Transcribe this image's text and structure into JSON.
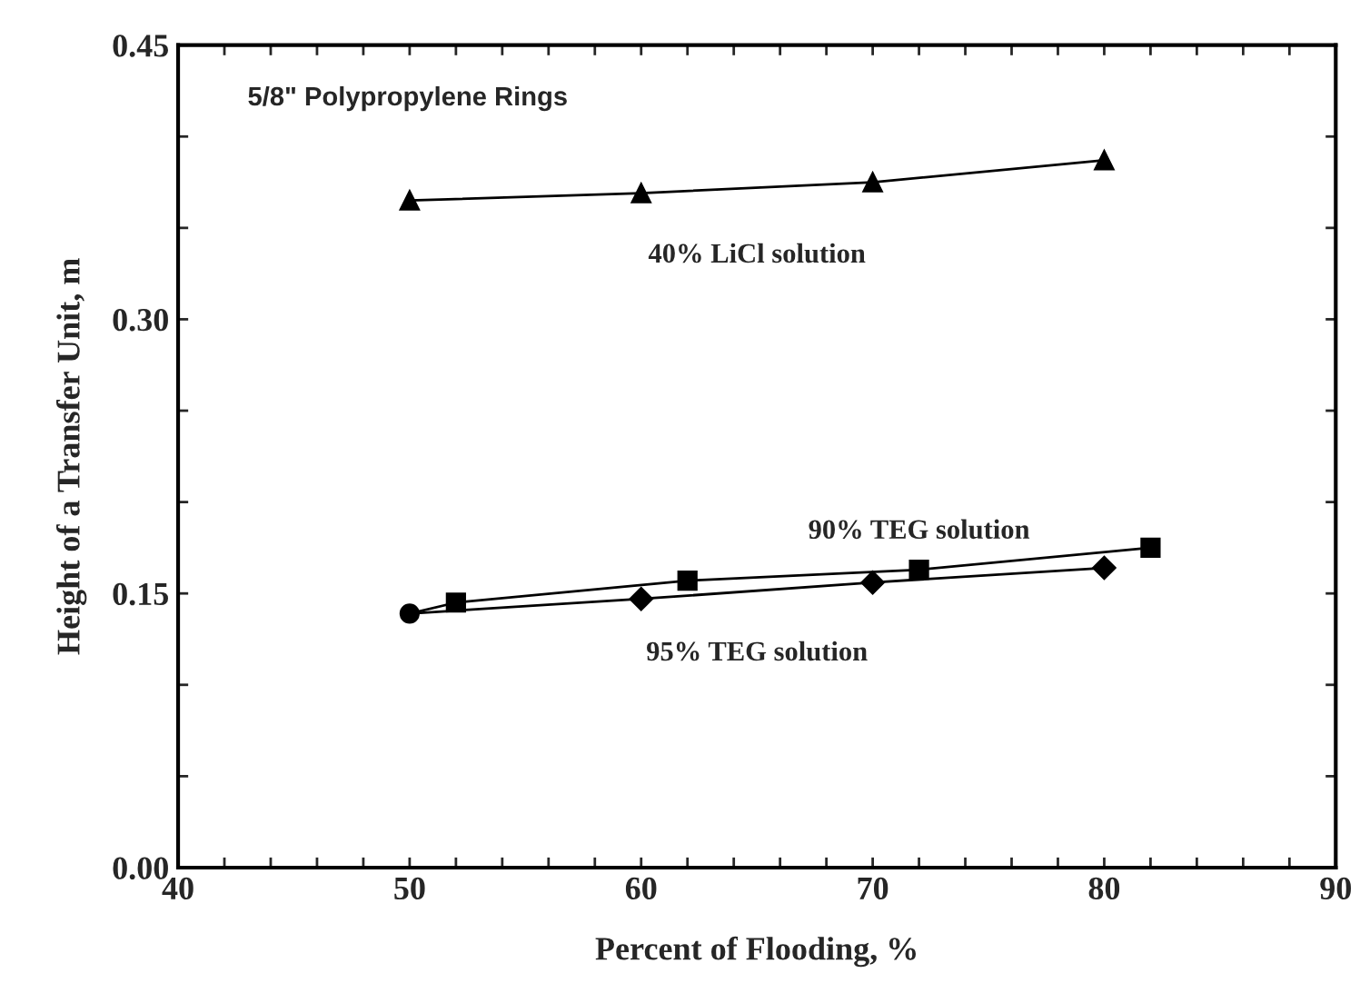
{
  "chart_data": {
    "type": "line",
    "xlabel": "Percent of Flooding, %",
    "ylabel": "Height of a Transfer Unit, m",
    "annotations": [
      "5/8\" Polypropylene Rings"
    ],
    "xlim": [
      40,
      90
    ],
    "ylim": [
      0,
      0.45
    ],
    "xticks": [
      40,
      {
        "value": 42,
        "label": null
      },
      {
        "value": 44,
        "label": null
      },
      {
        "value": 46,
        "label": null
      },
      {
        "value": 48,
        "label": null
      },
      50,
      {
        "value": 52,
        "label": null
      },
      {
        "value": 54,
        "label": null
      },
      {
        "value": 56,
        "label": null
      },
      {
        "value": 58,
        "label": null
      },
      60,
      {
        "value": 62,
        "label": null
      },
      {
        "value": 64,
        "label": null
      },
      {
        "value": 66,
        "label": null
      },
      {
        "value": 68,
        "label": null
      },
      70,
      {
        "value": 72,
        "label": null
      },
      {
        "value": 74,
        "label": null
      },
      {
        "value": 76,
        "label": null
      },
      {
        "value": 78,
        "label": null
      },
      80,
      {
        "value": 82,
        "label": null
      },
      {
        "value": 84,
        "label": null
      },
      {
        "value": 86,
        "label": null
      },
      {
        "value": 88,
        "label": null
      },
      90
    ],
    "yticks": [
      {
        "value": 0,
        "label": "0.00"
      },
      {
        "value": 0.05,
        "label": null
      },
      {
        "value": 0.1,
        "label": null
      },
      {
        "value": 0.15,
        "label": "0.15"
      },
      {
        "value": 0.2,
        "label": null
      },
      {
        "value": 0.25,
        "label": null
      },
      {
        "value": 0.3,
        "label": "0.30"
      },
      {
        "value": 0.35,
        "label": null
      },
      {
        "value": 0.4,
        "label": null
      },
      {
        "value": 0.45,
        "label": "0.45"
      }
    ],
    "grid": false,
    "legend": false,
    "line_style": "solid",
    "series": [
      {
        "name": "40% LiCl solution",
        "color": "#000000",
        "marker": "triangle",
        "x": [
          50,
          60,
          70,
          80
        ],
        "values": [
          0.365,
          0.369,
          0.375,
          0.387
        ]
      },
      {
        "name": "90% TEG solution",
        "color": "#000000",
        "marker": "square",
        "x": [
          50,
          52,
          62,
          72,
          82
        ],
        "values": [
          0.139,
          0.145,
          0.157,
          0.163,
          0.175
        ]
      },
      {
        "name": "95% TEG solution",
        "color": "#000000",
        "marker": "diamond",
        "x": [
          50,
          60,
          70,
          80
        ],
        "values": [
          0.139,
          0.147,
          0.156,
          0.164
        ]
      },
      {
        "type": "scatter",
        "color": "#000000",
        "marker": "circle",
        "x": [
          50
        ],
        "values": [
          0.139
        ]
      }
    ]
  }
}
